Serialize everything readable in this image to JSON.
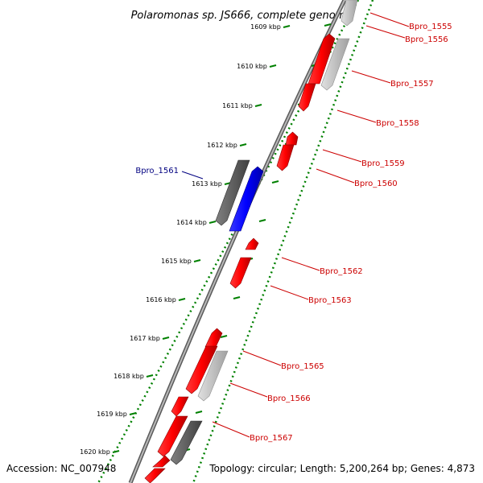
{
  "title": "Polaromonas sp. JS666, complete genome",
  "footer": {
    "accession": "Accession: NC_007948",
    "summary": "Topology: circular; Length: 5,200,264 bp; Genes: 4,873"
  },
  "ticks": [
    {
      "label": "1609 kbp"
    },
    {
      "label": "1610 kbp"
    },
    {
      "label": "1611 kbp"
    },
    {
      "label": "1612 kbp"
    },
    {
      "label": "1613 kbp"
    },
    {
      "label": "1614 kbp"
    },
    {
      "label": "1615 kbp"
    },
    {
      "label": "1616 kbp"
    },
    {
      "label": "1617 kbp"
    },
    {
      "label": "1618 kbp"
    },
    {
      "label": "1619 kbp"
    },
    {
      "label": "1620 kbp"
    }
  ],
  "genes": [
    {
      "name": "Bpro_1555",
      "color": "red"
    },
    {
      "name": "Bpro_1556",
      "color": "red"
    },
    {
      "name": "Bpro_1557",
      "color": "red"
    },
    {
      "name": "Bpro_1558",
      "color": "red"
    },
    {
      "name": "Bpro_1559",
      "color": "red"
    },
    {
      "name": "Bpro_1560",
      "color": "red"
    },
    {
      "name": "Bpro_1561",
      "color": "blue"
    },
    {
      "name": "Bpro_1562",
      "color": "red"
    },
    {
      "name": "Bpro_1563",
      "color": "red"
    },
    {
      "name": "Bpro_1565",
      "color": "red"
    },
    {
      "name": "Bpro_1566",
      "color": "red"
    },
    {
      "name": "Bpro_1567",
      "color": "red"
    }
  ],
  "colors": {
    "forward_gene": "#ff0000",
    "highlight_gene": "#0000ff",
    "pseudo_gene_light": "#c0c0c0",
    "pseudo_gene_dark": "#606060",
    "genome_line": "#808080",
    "tick_dots": "#008000",
    "label_red": "#cc0000",
    "label_blue": "#000080"
  }
}
